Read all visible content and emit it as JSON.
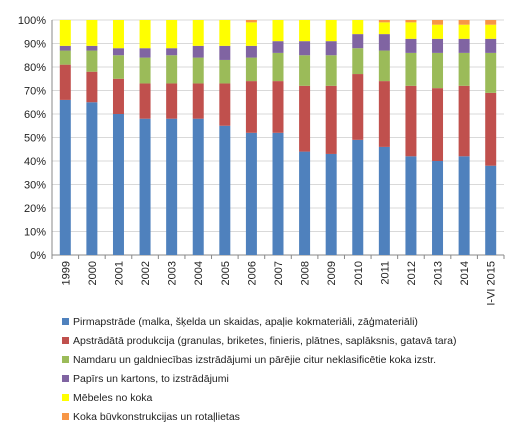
{
  "chart_data": {
    "type": "bar",
    "stacked": true,
    "percent": true,
    "categories": [
      "1999",
      "2000",
      "2001",
      "2002",
      "2003",
      "2004",
      "2005",
      "2006",
      "2007",
      "2008",
      "2009",
      "2010",
      "2011",
      "2012",
      "2013",
      "2014",
      "I-VI 2015"
    ],
    "ylim": [
      0,
      100
    ],
    "yticks": [
      "0%",
      "10%",
      "20%",
      "30%",
      "40%",
      "50%",
      "60%",
      "70%",
      "80%",
      "90%",
      "100%"
    ],
    "grid": true,
    "legend_position": "bottom",
    "series": [
      {
        "name": "Pirmapstrāde (malka, šķelda un skaidas, apaļie kokmateriāli, zāģmateriāli)",
        "color": "#4F81BD",
        "values": [
          66,
          65,
          60,
          58,
          58,
          58,
          55,
          52,
          52,
          44,
          43,
          49,
          46,
          42,
          40,
          42,
          38
        ]
      },
      {
        "name": "Apstrādātā produkcija (granulas, briketes, finieris, plātnes, saplāksnis, gatavā tara)",
        "color": "#C0504D",
        "values": [
          15,
          13,
          15,
          15,
          15,
          15,
          18,
          22,
          22,
          28,
          29,
          28,
          28,
          30,
          31,
          30,
          31
        ]
      },
      {
        "name": "Namdaru un galdniecības izstrādājumi un pārējie citur neklasificētie koka izstr.",
        "color": "#9BBB59",
        "values": [
          6,
          9,
          10,
          11,
          12,
          11,
          10,
          10,
          12,
          13,
          13,
          11,
          13,
          14,
          15,
          14,
          17
        ]
      },
      {
        "name": "Papīrs un kartons, to izstrādājumi",
        "color": "#8064A2",
        "values": [
          2,
          2,
          3,
          4,
          3,
          5,
          6,
          5,
          5,
          6,
          6,
          6,
          7,
          6,
          6,
          6,
          6
        ]
      },
      {
        "name": "Mēbeles no koka",
        "color": "#FFFF00",
        "values": [
          11,
          11,
          12,
          12,
          12,
          11,
          11,
          10,
          9,
          9,
          9,
          6,
          5,
          7,
          6,
          6,
          6
        ]
      },
      {
        "name": "Koka būvkonstrukcijas un rotaļlietas",
        "color": "#F79646",
        "values": [
          0,
          0,
          0,
          0,
          0,
          0,
          0,
          1,
          0,
          0,
          0,
          0,
          1,
          1,
          2,
          2,
          2
        ]
      }
    ]
  }
}
